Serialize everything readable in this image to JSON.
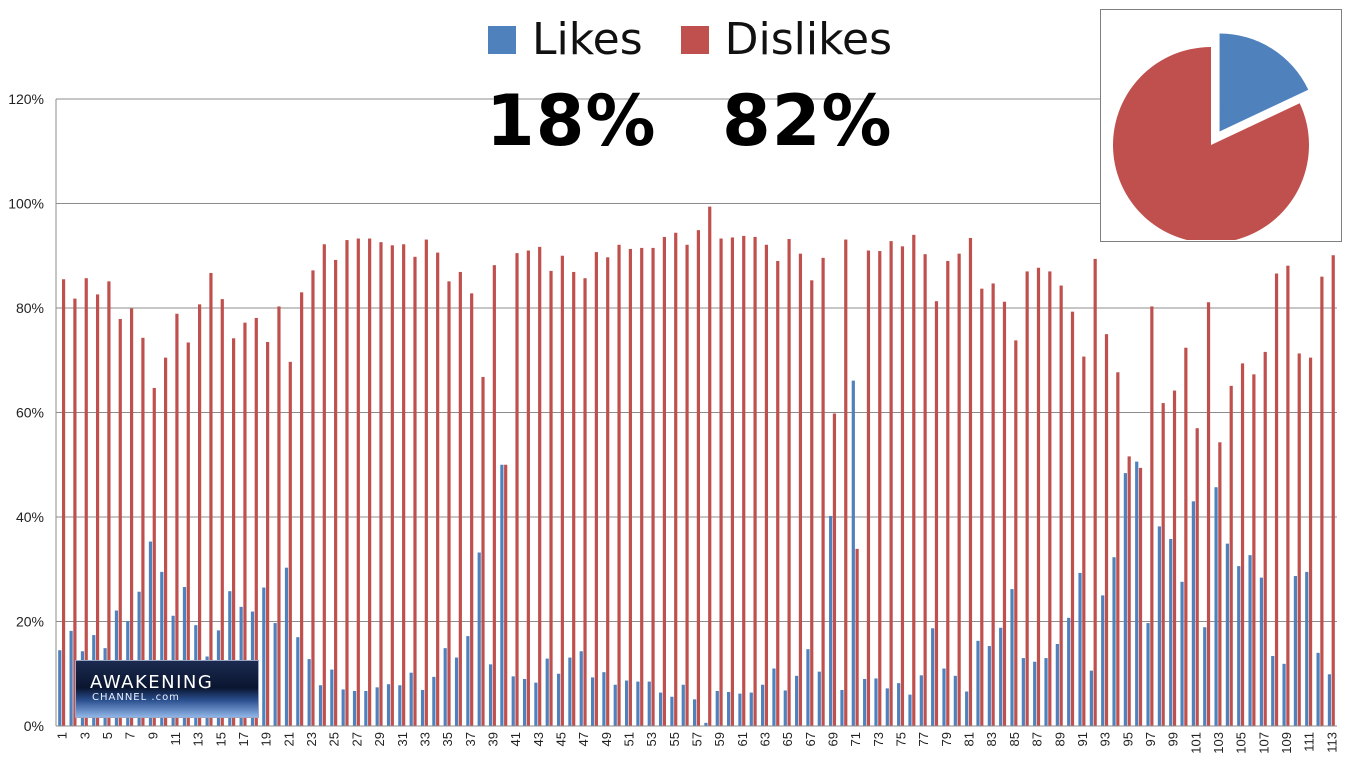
{
  "legend": {
    "likes_label": "Likes",
    "dislikes_label": "Dislikes",
    "likes_pct": "18%",
    "dislikes_pct": "82%"
  },
  "colors": {
    "likes": "#4f81bd",
    "dislikes": "#c0504d",
    "grid": "#8c8c8c"
  },
  "logo": {
    "line1": "AWAKENING",
    "line2": "CHANNEL",
    "line2_suffix": ".com"
  },
  "chart_data": [
    {
      "type": "bar",
      "ylim": [
        0,
        120
      ],
      "y_ticks": [
        "0%",
        "20%",
        "40%",
        "60%",
        "80%",
        "100%",
        "120%"
      ],
      "y_tick_values": [
        0,
        20,
        40,
        60,
        80,
        100,
        120
      ],
      "x": [
        1,
        2,
        3,
        4,
        5,
        6,
        7,
        8,
        9,
        10,
        11,
        12,
        13,
        14,
        15,
        16,
        17,
        18,
        19,
        20,
        21,
        22,
        23,
        24,
        25,
        26,
        27,
        28,
        29,
        30,
        31,
        32,
        33,
        34,
        35,
        36,
        37,
        38,
        39,
        40,
        41,
        42,
        43,
        44,
        45,
        46,
        47,
        48,
        49,
        50,
        51,
        52,
        53,
        54,
        55,
        56,
        57,
        58,
        59,
        60,
        61,
        62,
        63,
        64,
        65,
        66,
        67,
        68,
        69,
        70,
        71,
        72,
        73,
        74,
        75,
        76,
        77,
        78,
        79,
        80,
        81,
        82,
        83,
        84,
        85,
        86,
        87,
        88,
        89,
        90,
        91,
        92,
        93,
        94,
        95,
        96,
        97,
        98,
        99,
        100,
        101,
        102,
        103,
        104,
        105,
        106,
        107,
        108,
        109,
        110,
        111,
        112,
        113
      ],
      "x_tick_labels": [
        "1",
        "3",
        "5",
        "7",
        "9",
        "11",
        "13",
        "15",
        "17",
        "19",
        "21",
        "23",
        "25",
        "27",
        "29",
        "31",
        "33",
        "35",
        "37",
        "39",
        "41",
        "43",
        "45",
        "47",
        "49",
        "51",
        "53",
        "55",
        "57",
        "59",
        "61",
        "63",
        "65",
        "67",
        "69",
        "71",
        "73",
        "75",
        "77",
        "79",
        "81",
        "83",
        "85",
        "87",
        "89",
        "91",
        "93",
        "95",
        "97",
        "99",
        "101",
        "103",
        "105",
        "107",
        "109",
        "111",
        "113"
      ],
      "grid": true,
      "legend_position": "top",
      "series": [
        {
          "name": "Likes",
          "values": [
            14.5,
            18.2,
            14.3,
            17.4,
            14.9,
            22.1,
            20.1,
            25.7,
            35.3,
            29.5,
            21.1,
            26.6,
            19.3,
            13.3,
            18.3,
            25.8,
            22.8,
            21.9,
            26.5,
            19.7,
            30.3,
            17.0,
            12.8,
            7.8,
            10.8,
            7.0,
            6.7,
            6.7,
            7.4,
            8.0,
            7.8,
            10.2,
            6.9,
            9.4,
            14.9,
            13.1,
            17.2,
            33.2,
            11.8,
            50.0,
            9.5,
            9.0,
            8.3,
            12.9,
            10.0,
            13.1,
            14.3,
            9.3,
            10.3,
            7.9,
            8.7,
            8.5,
            8.5,
            6.4,
            5.6,
            7.9,
            5.1,
            0.6,
            6.7,
            6.5,
            6.2,
            6.4,
            7.9,
            11.0,
            6.8,
            9.6,
            14.7,
            10.4,
            40.2,
            6.9,
            66.1,
            9.0,
            9.1,
            7.2,
            8.2,
            6.0,
            9.7,
            18.7,
            11.0,
            9.6,
            6.6,
            16.3,
            15.3,
            18.8,
            26.2,
            13.0,
            12.3,
            13.0,
            15.7,
            20.7,
            29.3,
            10.6,
            25.0,
            32.3,
            48.4,
            50.6,
            19.7,
            38.2,
            35.8,
            27.6,
            43.0,
            18.9,
            45.7,
            34.9,
            30.6,
            32.7,
            28.4,
            13.4,
            11.9,
            28.7,
            29.5,
            14.0,
            9.9
          ]
        },
        {
          "name": "Dislikes",
          "values": [
            85.5,
            81.8,
            85.7,
            82.6,
            85.1,
            77.9,
            79.9,
            74.3,
            64.7,
            70.5,
            78.9,
            73.4,
            80.7,
            86.7,
            81.7,
            74.2,
            77.2,
            78.1,
            73.5,
            80.3,
            69.7,
            83.0,
            87.2,
            92.2,
            89.2,
            93.0,
            93.3,
            93.3,
            92.6,
            92.0,
            92.2,
            89.8,
            93.1,
            90.6,
            85.1,
            86.9,
            82.8,
            66.8,
            88.2,
            50.0,
            90.5,
            91.0,
            91.7,
            87.1,
            90.0,
            86.9,
            85.7,
            90.7,
            89.7,
            92.1,
            91.3,
            91.5,
            91.5,
            93.6,
            94.4,
            92.1,
            94.9,
            99.4,
            93.3,
            93.5,
            93.8,
            93.6,
            92.1,
            89.0,
            93.2,
            90.4,
            85.3,
            89.6,
            59.8,
            93.1,
            33.9,
            91.0,
            90.9,
            92.8,
            91.8,
            94.0,
            90.3,
            81.3,
            89.0,
            90.4,
            93.4,
            83.7,
            84.7,
            81.2,
            73.8,
            87.0,
            87.7,
            87.0,
            84.3,
            79.3,
            70.7,
            89.4,
            75.0,
            67.7,
            51.6,
            49.4,
            80.3,
            61.8,
            64.2,
            72.4,
            57.0,
            81.1,
            54.3,
            65.1,
            69.4,
            67.3,
            71.6,
            86.6,
            88.1,
            71.3,
            70.5,
            86.0,
            90.1
          ]
        }
      ]
    },
    {
      "type": "pie",
      "categories": [
        "Likes",
        "Dislikes"
      ],
      "values": [
        18,
        82
      ]
    }
  ]
}
